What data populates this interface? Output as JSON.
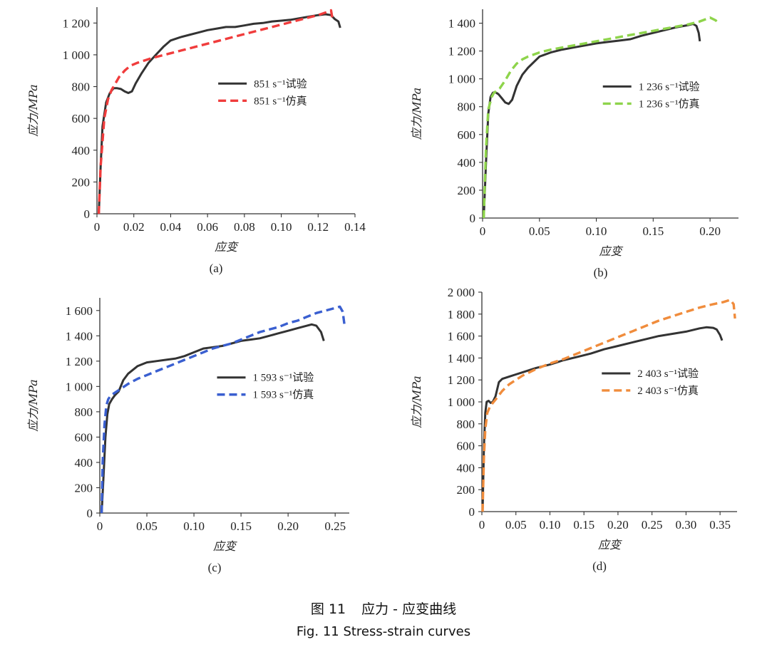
{
  "caption": {
    "figure_number_cn": "图 11",
    "title_cn": "应力 - 应变曲线",
    "title_en": "Fig. 11 Stress-strain curves"
  },
  "chart_data": [
    {
      "type": "line",
      "label": "(a)",
      "xlabel": "应变",
      "ylabel": "应力/MPa",
      "xlim": [
        0,
        0.14
      ],
      "ylim": [
        0,
        1300
      ],
      "xticks": [
        0,
        0.02,
        0.04,
        0.06,
        0.08,
        0.1,
        0.12,
        0.14
      ],
      "xtick_labels": [
        "0",
        "0.02",
        "0.04",
        "0.06",
        "0.08",
        "0.10",
        "0.12",
        "0.14"
      ],
      "yticks": [
        0,
        200,
        400,
        600,
        800,
        1000,
        1200
      ],
      "ytick_labels": [
        "0",
        "200",
        "400",
        "600",
        "800",
        "1 000",
        "1 200"
      ],
      "grid": false,
      "legend_position": "center-right",
      "series": [
        {
          "name": "851 s⁻¹试验",
          "style": "solid",
          "color": "#333333",
          "x": [
            0.001,
            0.002,
            0.003,
            0.005,
            0.007,
            0.009,
            0.011,
            0.013,
            0.015,
            0.017,
            0.019,
            0.021,
            0.024,
            0.028,
            0.032,
            0.036,
            0.04,
            0.045,
            0.05,
            0.055,
            0.06,
            0.065,
            0.07,
            0.075,
            0.08,
            0.085,
            0.09,
            0.095,
            0.1,
            0.105,
            0.11,
            0.115,
            0.12,
            0.124,
            0.127,
            0.129,
            0.131,
            0.132
          ],
          "y": [
            0,
            300,
            550,
            700,
            760,
            790,
            790,
            785,
            770,
            760,
            770,
            820,
            880,
            950,
            1000,
            1050,
            1090,
            1110,
            1125,
            1140,
            1155,
            1165,
            1175,
            1175,
            1185,
            1195,
            1200,
            1210,
            1215,
            1220,
            1230,
            1240,
            1250,
            1255,
            1250,
            1225,
            1210,
            1170
          ]
        },
        {
          "name": "851 s⁻¹仿真",
          "style": "dashed",
          "color": "#f03c3c",
          "x": [
            0.001,
            0.002,
            0.004,
            0.006,
            0.008,
            0.01,
            0.012,
            0.015,
            0.018,
            0.022,
            0.026,
            0.03,
            0.035,
            0.04,
            0.05,
            0.06,
            0.07,
            0.08,
            0.09,
            0.1,
            0.11,
            0.12,
            0.125,
            0.127,
            0.128
          ],
          "y": [
            0,
            300,
            600,
            720,
            780,
            820,
            860,
            900,
            930,
            950,
            965,
            980,
            995,
            1010,
            1040,
            1070,
            1100,
            1130,
            1160,
            1190,
            1220,
            1250,
            1270,
            1280,
            1210
          ]
        }
      ]
    },
    {
      "type": "line",
      "label": "(b)",
      "xlabel": "应变",
      "ylabel": "应力/MPa",
      "xlim": [
        0,
        0.225
      ],
      "ylim": [
        0,
        1500
      ],
      "xticks": [
        0,
        0.05,
        0.1,
        0.15,
        0.2
      ],
      "xtick_labels": [
        "0",
        "0.05",
        "0.10",
        "0.15",
        "0.20"
      ],
      "yticks": [
        0,
        200,
        400,
        600,
        800,
        1000,
        1200,
        1400
      ],
      "ytick_labels": [
        "0",
        "200",
        "400",
        "600",
        "800",
        "1 000",
        "1 200",
        "1 400"
      ],
      "grid": false,
      "legend_position": "center-right",
      "series": [
        {
          "name": "1 236 s⁻¹试验",
          "style": "solid",
          "color": "#333333",
          "x": [
            0.001,
            0.003,
            0.005,
            0.007,
            0.009,
            0.011,
            0.014,
            0.017,
            0.02,
            0.023,
            0.026,
            0.03,
            0.035,
            0.04,
            0.05,
            0.06,
            0.07,
            0.08,
            0.09,
            0.1,
            0.11,
            0.12,
            0.13,
            0.14,
            0.15,
            0.16,
            0.17,
            0.18,
            0.185,
            0.188,
            0.19,
            0.191
          ],
          "y": [
            0,
            400,
            750,
            870,
            900,
            905,
            890,
            860,
            830,
            820,
            850,
            950,
            1030,
            1080,
            1160,
            1190,
            1210,
            1225,
            1240,
            1255,
            1265,
            1275,
            1285,
            1310,
            1330,
            1350,
            1370,
            1385,
            1395,
            1380,
            1330,
            1270
          ]
        },
        {
          "name": "1 236 s⁻¹仿真",
          "style": "dashed",
          "color": "#8ed44b",
          "x": [
            0.001,
            0.003,
            0.005,
            0.008,
            0.01,
            0.015,
            0.02,
            0.025,
            0.03,
            0.035,
            0.04,
            0.05,
            0.06,
            0.07,
            0.08,
            0.09,
            0.1,
            0.11,
            0.12,
            0.13,
            0.14,
            0.15,
            0.16,
            0.17,
            0.18,
            0.19,
            0.2,
            0.205,
            0.208
          ],
          "y": [
            0,
            500,
            780,
            870,
            900,
            930,
            990,
            1060,
            1110,
            1140,
            1160,
            1190,
            1210,
            1225,
            1240,
            1255,
            1270,
            1285,
            1300,
            1315,
            1330,
            1345,
            1360,
            1375,
            1390,
            1410,
            1440,
            1420,
            1390
          ]
        }
      ]
    },
    {
      "type": "line",
      "label": "(c)",
      "xlabel": "应变",
      "ylabel": "应力/MPa",
      "xlim": [
        0,
        0.265
      ],
      "ylim": [
        0,
        1700
      ],
      "xticks": [
        0,
        0.05,
        0.1,
        0.15,
        0.2,
        0.25
      ],
      "xtick_labels": [
        "0",
        "0.05",
        "0.10",
        "0.15",
        "0.20",
        "0.25"
      ],
      "yticks": [
        0,
        200,
        400,
        600,
        800,
        1000,
        1200,
        1400,
        1600
      ],
      "ytick_labels": [
        "0",
        "200",
        "400",
        "600",
        "800",
        "1 000",
        "1 200",
        "1 400",
        "1 600"
      ],
      "grid": false,
      "legend_position": "center-right",
      "series": [
        {
          "name": "1 593 s⁻¹试验",
          "style": "solid",
          "color": "#333333",
          "x": [
            0.002,
            0.004,
            0.006,
            0.008,
            0.01,
            0.013,
            0.016,
            0.02,
            0.025,
            0.03,
            0.04,
            0.05,
            0.06,
            0.07,
            0.08,
            0.09,
            0.1,
            0.11,
            0.12,
            0.13,
            0.14,
            0.15,
            0.16,
            0.17,
            0.18,
            0.19,
            0.2,
            0.21,
            0.22,
            0.225,
            0.23,
            0.235,
            0.238
          ],
          "y": [
            0,
            300,
            600,
            780,
            860,
            900,
            930,
            960,
            1050,
            1100,
            1160,
            1190,
            1200,
            1210,
            1220,
            1240,
            1270,
            1300,
            1310,
            1320,
            1340,
            1360,
            1370,
            1380,
            1400,
            1420,
            1440,
            1460,
            1480,
            1490,
            1480,
            1430,
            1360
          ]
        },
        {
          "name": "1 593 s⁻¹仿真",
          "style": "dashed",
          "color": "#3a5fd0",
          "x": [
            0.002,
            0.003,
            0.005,
            0.007,
            0.009,
            0.012,
            0.016,
            0.02,
            0.03,
            0.04,
            0.05,
            0.06,
            0.07,
            0.08,
            0.09,
            0.1,
            0.11,
            0.12,
            0.13,
            0.14,
            0.15,
            0.16,
            0.17,
            0.18,
            0.19,
            0.2,
            0.21,
            0.22,
            0.23,
            0.24,
            0.25,
            0.255,
            0.258,
            0.26
          ],
          "y": [
            0,
            400,
            700,
            850,
            900,
            930,
            950,
            970,
            1020,
            1060,
            1090,
            1120,
            1150,
            1180,
            1210,
            1240,
            1270,
            1300,
            1320,
            1340,
            1370,
            1400,
            1430,
            1450,
            1470,
            1500,
            1520,
            1550,
            1580,
            1600,
            1620,
            1630,
            1590,
            1480
          ]
        }
      ]
    },
    {
      "type": "line",
      "label": "(d)",
      "xlabel": "应变",
      "ylabel": "应力/MPa",
      "xlim": [
        0,
        0.375
      ],
      "ylim": [
        0,
        2000
      ],
      "xticks": [
        0,
        0.05,
        0.1,
        0.15,
        0.2,
        0.25,
        0.3,
        0.35
      ],
      "xtick_labels": [
        "0",
        "0.05",
        "0.10",
        "0.15",
        "0.20",
        "0.25",
        "0.30",
        "0.35"
      ],
      "yticks": [
        0,
        200,
        400,
        600,
        800,
        1000,
        1200,
        1400,
        1600,
        1800,
        2000
      ],
      "ytick_labels": [
        "0",
        "200",
        "400",
        "600",
        "800",
        "1 000",
        "1 200",
        "1 400",
        "1 600",
        "1 800",
        "2 000"
      ],
      "grid": false,
      "legend_position": "center-right",
      "series": [
        {
          "name": "2 403 s⁻¹试验",
          "style": "solid",
          "color": "#333333",
          "x": [
            0.001,
            0.003,
            0.005,
            0.007,
            0.01,
            0.013,
            0.016,
            0.02,
            0.025,
            0.03,
            0.04,
            0.05,
            0.06,
            0.08,
            0.1,
            0.12,
            0.14,
            0.16,
            0.18,
            0.2,
            0.22,
            0.24,
            0.26,
            0.28,
            0.3,
            0.32,
            0.33,
            0.34,
            0.345,
            0.35,
            0.353
          ],
          "y": [
            0,
            600,
            900,
            1000,
            1010,
            990,
            1000,
            1050,
            1180,
            1210,
            1230,
            1250,
            1270,
            1310,
            1340,
            1380,
            1410,
            1440,
            1480,
            1510,
            1540,
            1570,
            1600,
            1620,
            1640,
            1670,
            1680,
            1675,
            1660,
            1610,
            1560
          ]
        },
        {
          "name": "2 403 s⁻¹仿真",
          "style": "dashed",
          "color": "#f08c3c",
          "x": [
            0.001,
            0.003,
            0.005,
            0.008,
            0.012,
            0.016,
            0.02,
            0.03,
            0.04,
            0.05,
            0.06,
            0.08,
            0.1,
            0.12,
            0.14,
            0.16,
            0.18,
            0.2,
            0.22,
            0.24,
            0.26,
            0.28,
            0.3,
            0.32,
            0.34,
            0.355,
            0.365,
            0.37,
            0.372
          ],
          "y": [
            0,
            500,
            750,
            900,
            960,
            990,
            1020,
            1100,
            1160,
            1200,
            1240,
            1300,
            1350,
            1390,
            1440,
            1490,
            1540,
            1590,
            1640,
            1690,
            1740,
            1780,
            1820,
            1860,
            1890,
            1910,
            1930,
            1890,
            1760
          ]
        }
      ]
    }
  ]
}
